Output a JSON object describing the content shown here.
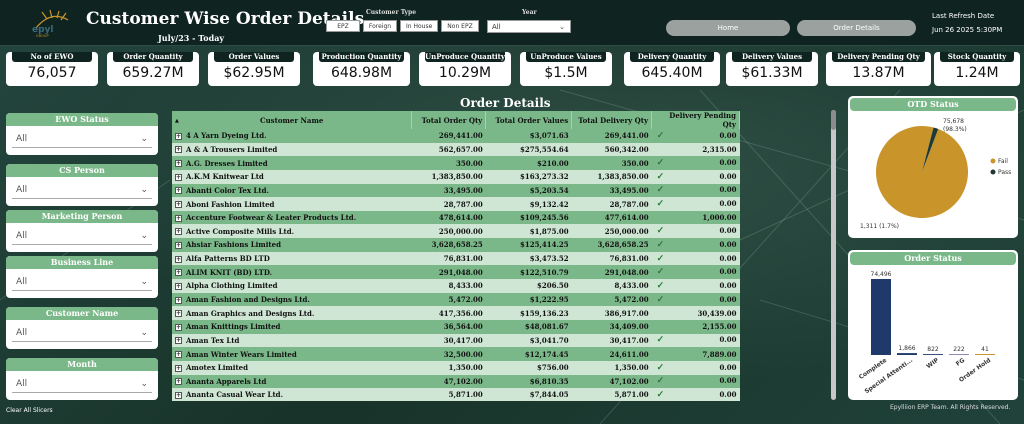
{
  "header": {
    "title": "Customer Wise Order Details",
    "date_range": "July/23 - Today",
    "customer_type_label": "Customer Type",
    "customer_types": [
      "EPZ",
      "Foreign",
      "In House",
      "Non EPZ"
    ],
    "year_label": "Year",
    "year_value": "All",
    "nav_home": "Home",
    "nav_order_details": "Order Details",
    "refresh_label": "Last Refresh Date",
    "refresh_value": "Jun 26 2025 5:30PM"
  },
  "kpis": [
    {
      "label": "No of EWO",
      "value": "76,057"
    },
    {
      "label": "Order Quantity",
      "value": "659.27M"
    },
    {
      "label": "Order Values",
      "value": "$62.95M"
    },
    {
      "label": "Production Quantity",
      "value": "648.98M"
    },
    {
      "label": "UnProduce Quantity",
      "value": "10.29M"
    },
    {
      "label": "UnProduce Values",
      "value": "$1.5M"
    },
    {
      "label": "Delivery Quantity",
      "value": "645.40M"
    },
    {
      "label": "Delivery Values",
      "value": "$61.33M"
    },
    {
      "label": "Delivery Pending Qty",
      "value": "13.87M"
    },
    {
      "label": "Stock Quantity",
      "value": "1.24M"
    }
  ],
  "slicers": [
    {
      "label": "EWO Status",
      "value": "All"
    },
    {
      "label": "CS Person",
      "value": "All"
    },
    {
      "label": "Marketing Person",
      "value": "All"
    },
    {
      "label": "Business Line",
      "value": "All"
    },
    {
      "label": "Customer Name",
      "value": "All"
    },
    {
      "label": "Month",
      "value": "All"
    }
  ],
  "clear_slicers": "Clear All Slicers",
  "table": {
    "title": "Order Details",
    "columns": [
      "Customer Name",
      "Total Order Qty",
      "Total Order Values",
      "Total Delivery Qty",
      "Delivery Pending Qty"
    ],
    "rows": [
      {
        "name": "4 A Yarn Dyeing Ltd.",
        "order_qty": "269,441.00",
        "order_val": "$3,071.63",
        "deliv_qty": "269,441.00",
        "pending": "0.00",
        "check": true
      },
      {
        "name": "A & A Trousers Limited",
        "order_qty": "562,657.00",
        "order_val": "$275,554.64",
        "deliv_qty": "560,342.00",
        "pending": "2,315.00",
        "check": false
      },
      {
        "name": "A.G. Dresses Limited",
        "order_qty": "350.00",
        "order_val": "$210.00",
        "deliv_qty": "350.00",
        "pending": "0.00",
        "check": true
      },
      {
        "name": "A.K.M Knitwear Ltd",
        "order_qty": "1,383,850.00",
        "order_val": "$163,273.32",
        "deliv_qty": "1,383,850.00",
        "pending": "0.00",
        "check": true
      },
      {
        "name": "Abanti Color Tex Ltd.",
        "order_qty": "33,495.00",
        "order_val": "$5,203.54",
        "deliv_qty": "33,495.00",
        "pending": "0.00",
        "check": true
      },
      {
        "name": "Aboni Fashion Limited",
        "order_qty": "28,787.00",
        "order_val": "$9,132.42",
        "deliv_qty": "28,787.00",
        "pending": "0.00",
        "check": true
      },
      {
        "name": "Accenture Footwear & Leater Products Ltd.",
        "order_qty": "478,614.00",
        "order_val": "$109,245.56",
        "deliv_qty": "477,614.00",
        "pending": "1,000.00",
        "check": false
      },
      {
        "name": "Active Composite Mills Ltd.",
        "order_qty": "250,000.00",
        "order_val": "$1,875.00",
        "deliv_qty": "250,000.00",
        "pending": "0.00",
        "check": true
      },
      {
        "name": "Ahsiar Fashions Limited",
        "order_qty": "3,628,658.25",
        "order_val": "$125,414.25",
        "deliv_qty": "3,628,658.25",
        "pending": "0.00",
        "check": true
      },
      {
        "name": "Alfa Patterns BD LTD",
        "order_qty": "76,831.00",
        "order_val": "$3,473.52",
        "deliv_qty": "76,831.00",
        "pending": "0.00",
        "check": true
      },
      {
        "name": "ALIM KNIT (BD) LTD.",
        "order_qty": "291,048.00",
        "order_val": "$122,510.79",
        "deliv_qty": "291,048.00",
        "pending": "0.00",
        "check": true
      },
      {
        "name": "Alpha Clothing Limited",
        "order_qty": "8,433.00",
        "order_val": "$206.50",
        "deliv_qty": "8,433.00",
        "pending": "0.00",
        "check": true
      },
      {
        "name": "Aman Fashion and Designs Ltd.",
        "order_qty": "5,472.00",
        "order_val": "$1,222.95",
        "deliv_qty": "5,472.00",
        "pending": "0.00",
        "check": true
      },
      {
        "name": "Aman Graphics and Designs Ltd.",
        "order_qty": "417,356.00",
        "order_val": "$159,136.23",
        "deliv_qty": "386,917.00",
        "pending": "30,439.00",
        "check": false
      },
      {
        "name": "Aman Knittings Limited",
        "order_qty": "36,564.00",
        "order_val": "$48,081.67",
        "deliv_qty": "34,409.00",
        "pending": "2,155.00",
        "check": false
      },
      {
        "name": "Aman Tex Ltd",
        "order_qty": "30,417.00",
        "order_val": "$3,041.70",
        "deliv_qty": "30,417.00",
        "pending": "0.00",
        "check": true
      },
      {
        "name": "Aman Winter Wears Limited",
        "order_qty": "32,500.00",
        "order_val": "$12,174.45",
        "deliv_qty": "24,611.00",
        "pending": "7,889.00",
        "check": false
      },
      {
        "name": "Amotex Limited",
        "order_qty": "1,350.00",
        "order_val": "$756.00",
        "deliv_qty": "1,350.00",
        "pending": "0.00",
        "check": true
      },
      {
        "name": "Ananta Apparels Ltd",
        "order_qty": "47,102.00",
        "order_val": "$6,810.35",
        "deliv_qty": "47,102.00",
        "pending": "0.00",
        "check": true
      },
      {
        "name": "Ananta Casual Wear Ltd.",
        "order_qty": "5,871.00",
        "order_val": "$7,844.05",
        "deliv_qty": "5,871.00",
        "pending": "0.00",
        "check": true
      }
    ]
  },
  "otd": {
    "title": "OTD Status",
    "legend": [
      "Fail",
      "Pass"
    ],
    "colors": {
      "fail": "#c9952a",
      "pass": "#1f3a36"
    },
    "fail_label_value": "75,678",
    "fail_label_pct": "(98.3%)",
    "pass_label": "1,311 (1.7%)"
  },
  "chart_data": [
    {
      "type": "pie",
      "title": "OTD Status",
      "categories": [
        "Fail",
        "Pass"
      ],
      "values": [
        75678,
        1311
      ]
    },
    {
      "type": "bar",
      "title": "Order Status",
      "categories": [
        "Complete",
        "Special Attenti...",
        "WIP",
        "FG",
        "Order Hold"
      ],
      "values": [
        74496,
        1866,
        822,
        222,
        41
      ],
      "value_labels": [
        "74,496",
        "1,866",
        "822",
        "222",
        "41"
      ],
      "colors": [
        "#1f3a6a",
        "#1f3a6a",
        "#3c4f7a",
        "#8a8fb0",
        "#c9952a"
      ]
    }
  ],
  "footer": "Epylliion ERP Team. All Rights Reserved."
}
